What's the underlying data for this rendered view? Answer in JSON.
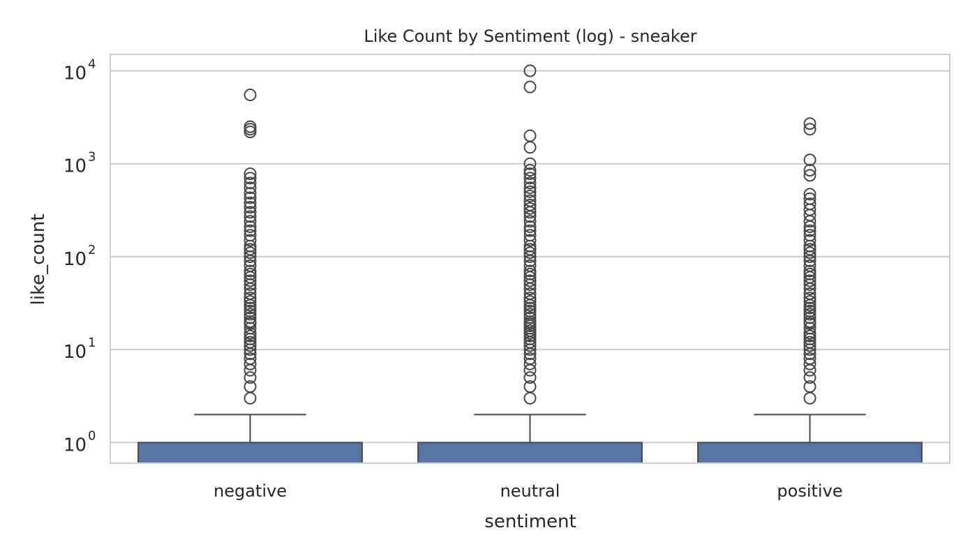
{
  "chart_data": {
    "type": "box",
    "title": "Like Count by Sentiment (log) - sneaker",
    "xlabel": "sentiment",
    "ylabel": "like_count",
    "yscale": "log",
    "ylim": [
      0.6,
      15000
    ],
    "grid": true,
    "y_ticks": [
      {
        "base": "10",
        "exp": "0",
        "value": 1
      },
      {
        "base": "10",
        "exp": "1",
        "value": 10
      },
      {
        "base": "10",
        "exp": "2",
        "value": 100
      },
      {
        "base": "10",
        "exp": "3",
        "value": 1000
      },
      {
        "base": "10",
        "exp": "4",
        "value": 10000
      }
    ],
    "categories": [
      "negative",
      "neutral",
      "positive"
    ],
    "box_color": "#5875a4",
    "edge_color": "#474747",
    "grid_color": "#cccccc",
    "boxes": [
      {
        "category": "negative",
        "q1": 0,
        "median": 0,
        "q3": 1,
        "whisker_low": 0,
        "whisker_high": 2,
        "outliers": [
          3,
          4,
          5,
          6,
          7,
          8,
          9,
          10,
          11,
          12,
          13,
          14,
          15,
          17,
          19,
          20,
          22,
          24,
          26,
          28,
          30,
          33,
          36,
          40,
          45,
          50,
          55,
          60,
          65,
          70,
          80,
          90,
          100,
          110,
          120,
          130,
          150,
          170,
          190,
          210,
          240,
          270,
          300,
          340,
          380,
          430,
          480,
          550,
          620,
          700,
          780,
          2200,
          2350,
          2500,
          5500
        ]
      },
      {
        "category": "neutral",
        "q1": 0,
        "median": 0,
        "q3": 1,
        "whisker_low": 0,
        "whisker_high": 2,
        "outliers": [
          3,
          4,
          5,
          6,
          7,
          8,
          9,
          10,
          11,
          12,
          13,
          14,
          15,
          16,
          17,
          18,
          19,
          20,
          22,
          24,
          26,
          28,
          30,
          33,
          36,
          40,
          45,
          50,
          55,
          60,
          65,
          70,
          80,
          90,
          100,
          110,
          120,
          130,
          150,
          170,
          190,
          210,
          240,
          270,
          300,
          330,
          360,
          400,
          450,
          500,
          550,
          620,
          700,
          780,
          850,
          1000,
          1500,
          2000,
          6700,
          10000
        ]
      },
      {
        "category": "positive",
        "q1": 0,
        "median": 0,
        "q3": 1,
        "whisker_low": 0,
        "whisker_high": 2,
        "outliers": [
          3,
          4,
          5,
          6,
          7,
          8,
          9,
          10,
          11,
          12,
          13,
          14,
          15,
          17,
          19,
          20,
          22,
          24,
          26,
          28,
          30,
          33,
          36,
          40,
          45,
          50,
          55,
          60,
          65,
          70,
          80,
          90,
          100,
          110,
          120,
          130,
          150,
          170,
          190,
          210,
          240,
          280,
          320,
          370,
          420,
          470,
          750,
          850,
          1100,
          2350,
          2700
        ]
      }
    ]
  }
}
